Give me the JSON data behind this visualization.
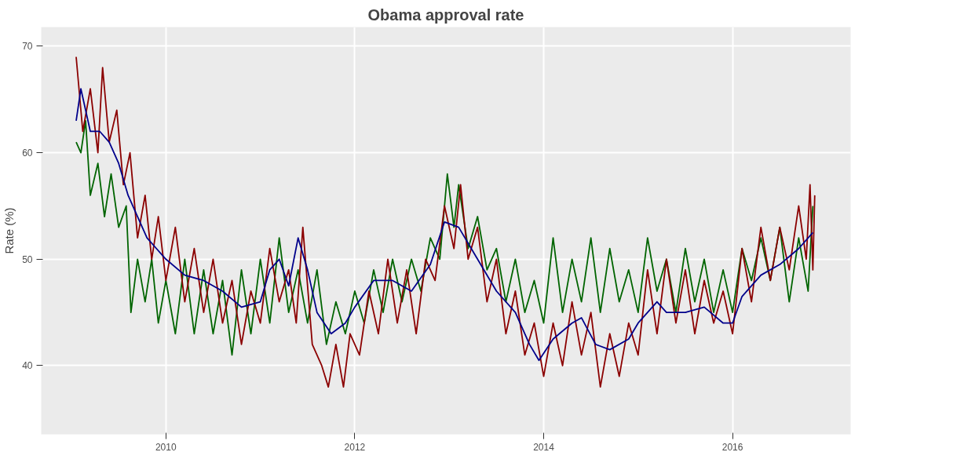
{
  "chart_data": {
    "type": "line",
    "title": "Obama approval rate",
    "ylabel": "Rate (%)",
    "xlim": [
      2008.68,
      2017.25
    ],
    "ylim": [
      33.55,
      71.8
    ],
    "xticks": [
      2010,
      2012,
      2014,
      2016
    ],
    "yticks": [
      40,
      50,
      60,
      70
    ],
    "grid": true,
    "line_style": "solid",
    "marker": "none",
    "series": [
      {
        "color": "#006400",
        "x": [
          2009.05,
          2009.1,
          2009.15,
          2009.2,
          2009.28,
          2009.35,
          2009.42,
          2009.5,
          2009.58,
          2009.63,
          2009.7,
          2009.78,
          2009.85,
          2009.92,
          2010.0,
          2010.1,
          2010.2,
          2010.3,
          2010.4,
          2010.5,
          2010.6,
          2010.7,
          2010.8,
          2010.9,
          2011.0,
          2011.1,
          2011.2,
          2011.3,
          2011.4,
          2011.5,
          2011.6,
          2011.7,
          2011.8,
          2011.9,
          2012.0,
          2012.1,
          2012.2,
          2012.3,
          2012.4,
          2012.5,
          2012.6,
          2012.7,
          2012.8,
          2012.9,
          2012.98,
          2013.05,
          2013.1,
          2013.2,
          2013.3,
          2013.4,
          2013.5,
          2013.6,
          2013.7,
          2013.8,
          2013.9,
          2014.0,
          2014.1,
          2014.2,
          2014.3,
          2014.4,
          2014.5,
          2014.6,
          2014.7,
          2014.8,
          2014.9,
          2015.0,
          2015.1,
          2015.2,
          2015.3,
          2015.4,
          2015.5,
          2015.6,
          2015.7,
          2015.8,
          2015.9,
          2016.0,
          2016.1,
          2016.2,
          2016.3,
          2016.4,
          2016.5,
          2016.6,
          2016.7,
          2016.8,
          2016.85
        ],
        "values": [
          61,
          60,
          63,
          56,
          59,
          54,
          58,
          53,
          55,
          45,
          50,
          46,
          50,
          44,
          48,
          43,
          50,
          43,
          49,
          43,
          48,
          41,
          49,
          43,
          50,
          44,
          52,
          45,
          49,
          44,
          49,
          42,
          46,
          43,
          47,
          44,
          49,
          45,
          50,
          46,
          50,
          47,
          52,
          50,
          58,
          53,
          57,
          51,
          54,
          49,
          51,
          46,
          50,
          45,
          48,
          44,
          52,
          45,
          50,
          46,
          52,
          45,
          51,
          46,
          49,
          45,
          52,
          47,
          50,
          45,
          51,
          46,
          50,
          45,
          49,
          45,
          51,
          48,
          52,
          48,
          53,
          46,
          52,
          47,
          55
        ]
      },
      {
        "color": "#8b0000",
        "x": [
          2009.05,
          2009.12,
          2009.2,
          2009.28,
          2009.33,
          2009.4,
          2009.48,
          2009.55,
          2009.62,
          2009.7,
          2009.78,
          2009.85,
          2009.92,
          2010.0,
          2010.1,
          2010.2,
          2010.3,
          2010.4,
          2010.5,
          2010.6,
          2010.7,
          2010.8,
          2010.9,
          2011.0,
          2011.1,
          2011.2,
          2011.3,
          2011.38,
          2011.45,
          2011.55,
          2011.65,
          2011.72,
          2011.8,
          2011.88,
          2011.95,
          2012.05,
          2012.15,
          2012.25,
          2012.35,
          2012.45,
          2012.55,
          2012.65,
          2012.75,
          2012.85,
          2012.95,
          2013.05,
          2013.12,
          2013.2,
          2013.3,
          2013.4,
          2013.5,
          2013.6,
          2013.7,
          2013.8,
          2013.9,
          2014.0,
          2014.1,
          2014.2,
          2014.3,
          2014.4,
          2014.5,
          2014.6,
          2014.7,
          2014.8,
          2014.9,
          2015.0,
          2015.1,
          2015.2,
          2015.3,
          2015.4,
          2015.5,
          2015.6,
          2015.7,
          2015.8,
          2015.9,
          2016.0,
          2016.1,
          2016.2,
          2016.3,
          2016.4,
          2016.5,
          2016.6,
          2016.7,
          2016.78,
          2016.82,
          2016.85,
          2016.87
        ],
        "values": [
          69,
          62,
          66,
          60,
          68,
          61,
          64,
          57,
          60,
          52,
          56,
          50,
          54,
          48,
          53,
          46,
          51,
          45,
          50,
          44,
          48,
          42,
          47,
          44,
          51,
          46,
          49,
          44,
          53,
          42,
          40,
          38,
          42,
          38,
          43,
          41,
          47,
          43,
          50,
          44,
          49,
          43,
          50,
          48,
          55,
          51,
          57,
          50,
          53,
          46,
          50,
          43,
          47,
          41,
          44,
          39,
          44,
          40,
          46,
          41,
          45,
          38,
          43,
          39,
          44,
          41,
          49,
          43,
          50,
          44,
          49,
          43,
          48,
          44,
          47,
          43,
          51,
          46,
          53,
          48,
          53,
          49,
          55,
          50,
          57,
          49,
          56
        ]
      },
      {
        "color": "#00008b",
        "x": [
          2009.05,
          2009.1,
          2009.2,
          2009.3,
          2009.4,
          2009.5,
          2009.6,
          2009.7,
          2009.8,
          2009.9,
          2010.0,
          2010.2,
          2010.4,
          2010.6,
          2010.8,
          2011.0,
          2011.1,
          2011.2,
          2011.3,
          2011.4,
          2011.5,
          2011.6,
          2011.75,
          2011.9,
          2012.0,
          2012.2,
          2012.4,
          2012.6,
          2012.8,
          2012.95,
          2013.1,
          2013.3,
          2013.5,
          2013.7,
          2013.85,
          2013.95,
          2014.1,
          2014.3,
          2014.4,
          2014.55,
          2014.7,
          2014.9,
          2015.0,
          2015.2,
          2015.3,
          2015.5,
          2015.7,
          2015.9,
          2016.0,
          2016.1,
          2016.3,
          2016.5,
          2016.7,
          2016.85
        ],
        "values": [
          63,
          66,
          62,
          62,
          61,
          59,
          56,
          54,
          52,
          51,
          50,
          48.5,
          48,
          47,
          45.5,
          46,
          49,
          50,
          47.5,
          52,
          49,
          45,
          43,
          44,
          45.5,
          48,
          48,
          47,
          49.5,
          53.5,
          53,
          50,
          47,
          45,
          42,
          40.5,
          42.5,
          44,
          44.5,
          42,
          41.5,
          42.5,
          44,
          46,
          45,
          45,
          45.5,
          44,
          44,
          46.5,
          48.5,
          49.5,
          51,
          52.5
        ]
      }
    ]
  }
}
